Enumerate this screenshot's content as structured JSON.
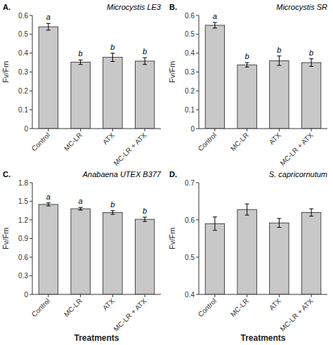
{
  "chart_data": [
    {
      "type": "bar",
      "panel_label": "A.",
      "title": "Microcystis LE3",
      "categories": [
        "Control",
        "MC-LR",
        "ATX",
        "MC-LR + ATX"
      ],
      "values": [
        0.54,
        0.352,
        0.378,
        0.358
      ],
      "errors": [
        0.018,
        0.012,
        0.022,
        0.018
      ],
      "annotations": [
        "a",
        "b",
        "b",
        "b"
      ],
      "ylabel": "Fv/Fm",
      "ylim": [
        0.0,
        0.6
      ],
      "yticks": [
        0.0,
        0.1,
        0.2,
        0.3,
        0.4,
        0.5,
        0.6
      ],
      "color": "#c8c8c8",
      "grid": false
    },
    {
      "type": "bar",
      "panel_label": "B.",
      "title": "Microcystis SR",
      "categories": [
        "Control",
        "MC-LR",
        "ATX",
        "MC-LR + ATX"
      ],
      "values": [
        0.548,
        0.338,
        0.36,
        0.35
      ],
      "errors": [
        0.015,
        0.012,
        0.025,
        0.02
      ],
      "annotations": [
        "a",
        "b",
        "b",
        "b"
      ],
      "ylabel": "Fv/Fm",
      "ylim": [
        0.0,
        0.6
      ],
      "yticks": [
        0.0,
        0.1,
        0.2,
        0.3,
        0.4,
        0.5,
        0.6
      ],
      "color": "#c8c8c8",
      "grid": false
    },
    {
      "type": "bar",
      "panel_label": "C.",
      "title": "Anabaena UTEX B377",
      "categories": [
        "Control",
        "MC-LR",
        "ATX",
        "MC-LR + ATX"
      ],
      "values": [
        1.45,
        1.38,
        1.32,
        1.21
      ],
      "errors": [
        0.025,
        0.022,
        0.03,
        0.035
      ],
      "annotations": [
        "a",
        "a",
        "b",
        "b"
      ],
      "ylabel": "Fv/Fm",
      "xlabel": "Treatments",
      "ylim": [
        0.0,
        1.8
      ],
      "yticks": [
        0.0,
        0.3,
        0.6,
        0.9,
        1.2,
        1.5,
        1.8
      ],
      "color": "#c8c8c8",
      "grid": false
    },
    {
      "type": "bar",
      "panel_label": "D.",
      "title": "S. capricornutum",
      "categories": [
        "Control",
        "MC-LR",
        "ATX",
        "MC-LR + ATX"
      ],
      "values": [
        0.59,
        0.628,
        0.592,
        0.62
      ],
      "errors": [
        0.018,
        0.015,
        0.012,
        0.01
      ],
      "ylabel": "Fv/Fm",
      "xlabel": "Treatments",
      "ylim": [
        0.4,
        0.7
      ],
      "yticks": [
        0.4,
        0.5,
        0.6,
        0.7
      ],
      "color": "#c8c8c8",
      "grid": false
    }
  ]
}
